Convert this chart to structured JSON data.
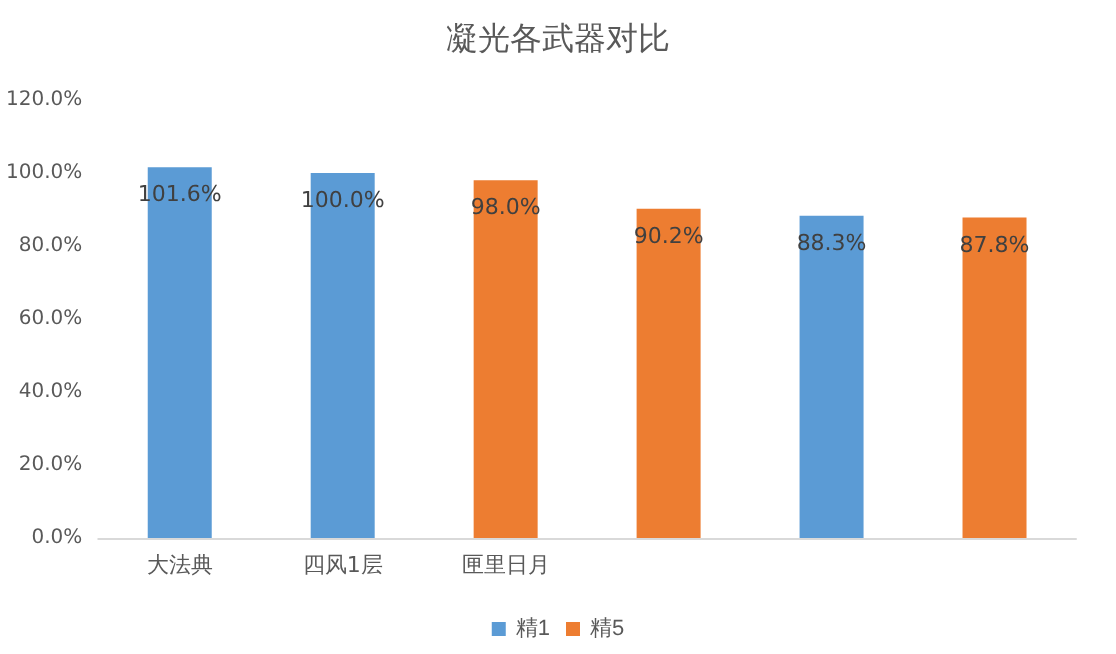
{
  "chart_data": {
    "type": "bar",
    "title": "凝光各武器对比",
    "categories": [
      "大法典",
      "四风1层",
      "匣里日月",
      null,
      null,
      null
    ],
    "series": [
      {
        "name": "精1",
        "color": "#5b9bd5",
        "values": [
          101.6,
          100.0,
          null,
          null,
          88.3,
          null
        ],
        "value_labels": [
          "101.6%",
          "100.0%",
          null,
          null,
          "88.3%",
          null
        ]
      },
      {
        "name": "精5",
        "color": "#ed7d31",
        "values": [
          null,
          null,
          98.0,
          90.2,
          null,
          87.8
        ],
        "value_labels": [
          null,
          null,
          "98.0%",
          "90.2%",
          null,
          "87.8%"
        ]
      }
    ],
    "ylim": [
      0,
      120
    ],
    "yticks": [
      {
        "value": 0,
        "label": "0.0%"
      },
      {
        "value": 20,
        "label": "20.0%"
      },
      {
        "value": 40,
        "label": "40.0%"
      },
      {
        "value": 60,
        "label": "60.0%"
      },
      {
        "value": 80,
        "label": "80.0%"
      },
      {
        "value": 100,
        "label": "100.0%"
      },
      {
        "value": 120,
        "label": "120.0%"
      }
    ],
    "grid": false,
    "legend": "bottom"
  }
}
